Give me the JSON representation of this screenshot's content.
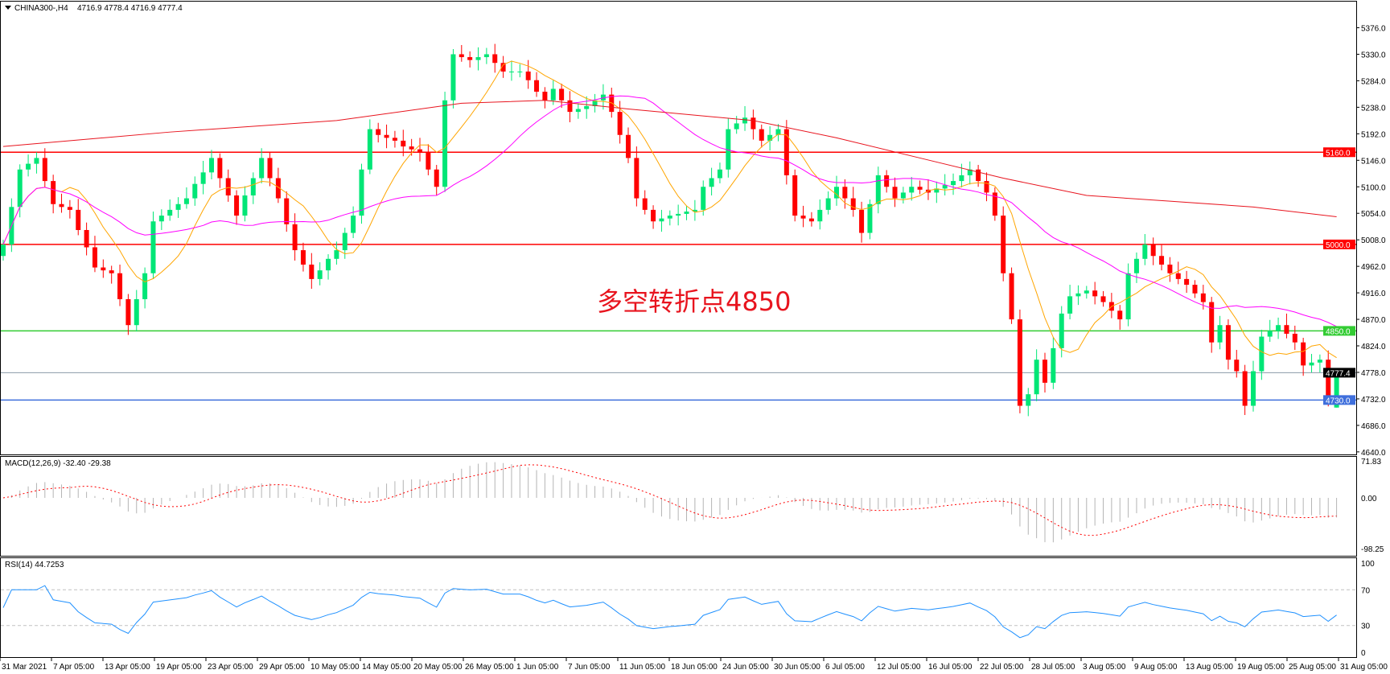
{
  "header": {
    "symbol": "CHINA300-,H4",
    "ohlc": "4716.9 4778.4 4716.9 4777.4"
  },
  "annotation": "多空转折点4850",
  "colors": {
    "bull": "#00e676",
    "bear": "#ff0000",
    "fast_ma": "#ffa500",
    "mid_ma": "#ff00ff",
    "slow_ma": "#e8141e",
    "rsi": "#1e90ff",
    "macd_hist": "#b4b4b4",
    "macd_signal": "#ff0000"
  },
  "horizontal_lines": [
    {
      "value": 5160.0,
      "label": "5160.0",
      "color": "#ff0000"
    },
    {
      "value": 5000.0,
      "label": "5000.0",
      "color": "#ff0000"
    },
    {
      "value": 4850.0,
      "label": "4850.0",
      "color": "#33cc33"
    },
    {
      "value": 4777.4,
      "label": "4777.4",
      "color": "#000000",
      "line_color": "#8a9aa8"
    },
    {
      "value": 4730.0,
      "label": "4730.0",
      "color": "#3f6fdc"
    }
  ],
  "chart_data": [
    {
      "type": "candlestick",
      "title": "CHINA300-,H4",
      "ylim": [
        4640,
        5400
      ],
      "y_ticks": [
        "5376.0",
        "5330.0",
        "5284.0",
        "5238.0",
        "5192.0",
        "5146.0",
        "5100.0",
        "5054.0",
        "5008.0",
        "4962.0",
        "4916.0",
        "4870.0",
        "4824.0",
        "4778.0",
        "4732.0",
        "4686.0",
        "4640.0"
      ],
      "x_ticks": [
        "31 Mar 2021",
        "7 Apr 05:00",
        "13 Apr 05:00",
        "19 Apr 05:00",
        "23 Apr 05:00",
        "29 Apr 05:00",
        "10 May 05:00",
        "14 May 05:00",
        "20 May 05:00",
        "26 May 05:00",
        "1 Jun 05:00",
        "7 Jun 05:00",
        "11 Jun 05:00",
        "18 Jun 05:00",
        "24 Jun 05:00",
        "30 Jun 05:00",
        "6 Jul 05:00",
        "12 Jul 05:00",
        "16 Jul 05:00",
        "22 Jul 05:00",
        "28 Jul 05:00",
        "3 Aug 05:00",
        "9 Aug 05:00",
        "13 Aug 05:00",
        "19 Aug 05:00",
        "25 Aug 05:00",
        "31 Aug 05:00"
      ],
      "closes": [
        5000,
        5065,
        5130,
        5140,
        5150,
        5110,
        5070,
        5065,
        5060,
        5025,
        4995,
        4960,
        4955,
        4950,
        4905,
        4860,
        4905,
        4950,
        5040,
        5050,
        5060,
        5070,
        5080,
        5105,
        5125,
        5150,
        5115,
        5085,
        5050,
        5085,
        5115,
        5150,
        5115,
        5080,
        5035,
        4990,
        4965,
        4940,
        4955,
        4975,
        4990,
        5020,
        5050,
        5130,
        5200,
        5190,
        5185,
        5180,
        5170,
        5165,
        5160,
        5130,
        5100,
        5250,
        5330,
        5325,
        5320,
        5325,
        5330,
        5315,
        5300,
        5300,
        5300,
        5285,
        5265,
        5250,
        5270,
        5250,
        5230,
        5235,
        5240,
        5250,
        5260,
        5230,
        5190,
        5150,
        5080,
        5060,
        5040,
        5045,
        5050,
        5053,
        5057,
        5060,
        5100,
        5115,
        5130,
        5200,
        5210,
        5220,
        5200,
        5180,
        5190,
        5200,
        5120,
        5050,
        5045,
        5040,
        5060,
        5080,
        5100,
        5080,
        5060,
        5020,
        5070,
        5120,
        5100,
        5080,
        5090,
        5100,
        5095,
        5090,
        5097,
        5103,
        5110,
        5120,
        5130,
        5110,
        5090,
        5050,
        4950,
        4870,
        4720,
        4740,
        4800,
        4760,
        4820,
        4880,
        4910,
        4915,
        4920,
        4910,
        4900,
        4885,
        4870,
        4950,
        4975,
        5000,
        4980,
        4965,
        4950,
        4940,
        4930,
        4915,
        4900,
        4830,
        4860,
        4800,
        4780,
        4720,
        4780,
        4840,
        4850,
        4860,
        4845,
        4830,
        4790,
        4795,
        4800,
        4730
      ],
      "last_bar": {
        "open": 4716.9,
        "high": 4778.4,
        "low": 4716.9,
        "close": 4777.4
      },
      "slow_ma": [
        [
          0,
          5170
        ],
        [
          20,
          5195
        ],
        [
          40,
          5215
        ],
        [
          55,
          5245
        ],
        [
          65,
          5250
        ],
        [
          75,
          5235
        ],
        [
          90,
          5215
        ],
        [
          100,
          5185
        ],
        [
          110,
          5150
        ],
        [
          120,
          5115
        ],
        [
          130,
          5085
        ],
        [
          140,
          5075
        ],
        [
          150,
          5065
        ],
        [
          160,
          5048
        ]
      ]
    },
    {
      "type": "bar",
      "title": "MACD(12,26,9) -32.40 -29.38",
      "ylim": [
        -98.25,
        71.83
      ],
      "y_ticks": [
        "71.83",
        "0.00",
        "-98.25"
      ]
    },
    {
      "type": "line",
      "title": "RSI(14) 44.7253",
      "ylim": [
        0,
        100
      ],
      "y_ticks": [
        "100",
        "70",
        "30",
        "0"
      ],
      "levels": [
        70,
        30
      ]
    }
  ]
}
